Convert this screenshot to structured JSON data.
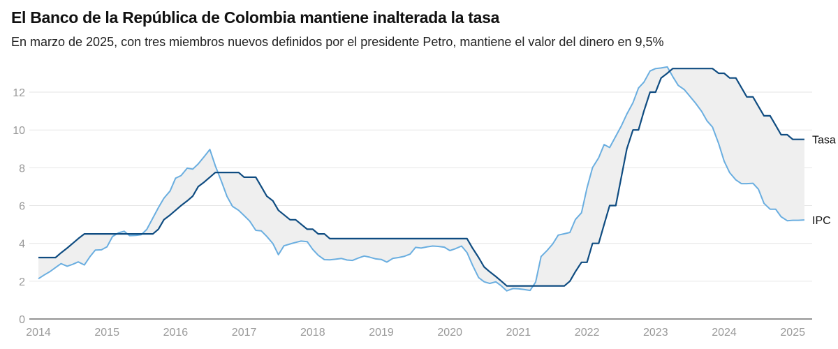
{
  "title": "El Banco de la República de Colombia mantiene inalterada la tasa",
  "subtitle": "En marzo de 2025, con tres miembros nuevos definidos por el presidente Petro, mantiene el valor del dinero en 9,5%",
  "chart_data": {
    "type": "line",
    "title": "El Banco de la República de Colombia mantiene inalterada la tasa",
    "xlim": [
      2014,
      2025.17
    ],
    "ylim": [
      0,
      13.5
    ],
    "x_ticks": [
      "2014",
      "2015",
      "2016",
      "2017",
      "2018",
      "2019",
      "2020",
      "2021",
      "2022",
      "2023",
      "2024",
      "2025"
    ],
    "y_ticks": [
      "0",
      "2",
      "4",
      "6",
      "8",
      "10",
      "12"
    ],
    "grid": true,
    "fill_between": true,
    "colors": {
      "Tasa": "#0f4c81",
      "IPC": "#6aaee0",
      "fill": "#efefef"
    },
    "series": [
      {
        "name": "Tasa",
        "points": [
          [
            2014,
            3.25
          ],
          [
            2014.25,
            3.25
          ],
          [
            2014.33,
            3.5
          ],
          [
            2014.42,
            3.75
          ],
          [
            2014.5,
            4.0
          ],
          [
            2014.58,
            4.25
          ],
          [
            2014.67,
            4.5
          ],
          [
            2015.67,
            4.5
          ],
          [
            2015.75,
            4.75
          ],
          [
            2015.83,
            5.25
          ],
          [
            2015.92,
            5.5
          ],
          [
            2016.0,
            5.75
          ],
          [
            2016.08,
            6.0
          ],
          [
            2016.17,
            6.25
          ],
          [
            2016.25,
            6.5
          ],
          [
            2016.33,
            7.0
          ],
          [
            2016.42,
            7.25
          ],
          [
            2016.5,
            7.5
          ],
          [
            2016.58,
            7.75
          ],
          [
            2016.92,
            7.75
          ],
          [
            2017.0,
            7.5
          ],
          [
            2017.17,
            7.5
          ],
          [
            2017.25,
            7.0
          ],
          [
            2017.33,
            6.5
          ],
          [
            2017.42,
            6.25
          ],
          [
            2017.5,
            5.75
          ],
          [
            2017.67,
            5.25
          ],
          [
            2017.75,
            5.25
          ],
          [
            2017.92,
            4.75
          ],
          [
            2018.0,
            4.75
          ],
          [
            2018.08,
            4.5
          ],
          [
            2018.17,
            4.5
          ],
          [
            2018.25,
            4.25
          ],
          [
            2020.25,
            4.25
          ],
          [
            2020.33,
            3.75
          ],
          [
            2020.42,
            3.25
          ],
          [
            2020.5,
            2.75
          ],
          [
            2020.58,
            2.5
          ],
          [
            2020.67,
            2.25
          ],
          [
            2020.75,
            2.0
          ],
          [
            2020.83,
            1.75
          ],
          [
            2021.67,
            1.75
          ],
          [
            2021.75,
            2.0
          ],
          [
            2021.83,
            2.5
          ],
          [
            2021.92,
            3.0
          ],
          [
            2022.0,
            3.0
          ],
          [
            2022.08,
            4.0
          ],
          [
            2022.17,
            4.0
          ],
          [
            2022.25,
            5.0
          ],
          [
            2022.33,
            6.0
          ],
          [
            2022.42,
            6.0
          ],
          [
            2022.5,
            7.5
          ],
          [
            2022.58,
            9.0
          ],
          [
            2022.67,
            10.0
          ],
          [
            2022.75,
            10.0
          ],
          [
            2022.83,
            11.0
          ],
          [
            2022.92,
            12.0
          ],
          [
            2023.0,
            12.0
          ],
          [
            2023.08,
            12.75
          ],
          [
            2023.17,
            13.0
          ],
          [
            2023.25,
            13.25
          ],
          [
            2023.83,
            13.25
          ],
          [
            2023.92,
            13.0
          ],
          [
            2024.0,
            13.0
          ],
          [
            2024.08,
            12.75
          ],
          [
            2024.17,
            12.75
          ],
          [
            2024.25,
            12.25
          ],
          [
            2024.33,
            11.75
          ],
          [
            2024.42,
            11.75
          ],
          [
            2024.5,
            11.25
          ],
          [
            2024.58,
            10.75
          ],
          [
            2024.67,
            10.75
          ],
          [
            2024.75,
            10.25
          ],
          [
            2024.83,
            9.75
          ],
          [
            2024.92,
            9.75
          ],
          [
            2025.0,
            9.5
          ],
          [
            2025.17,
            9.5
          ]
        ]
      },
      {
        "name": "IPC",
        "points": [
          [
            2014,
            2.13
          ],
          [
            2014.08,
            2.32
          ],
          [
            2014.17,
            2.51
          ],
          [
            2014.25,
            2.72
          ],
          [
            2014.33,
            2.93
          ],
          [
            2014.42,
            2.79
          ],
          [
            2014.5,
            2.89
          ],
          [
            2014.58,
            3.02
          ],
          [
            2014.67,
            2.86
          ],
          [
            2014.75,
            3.29
          ],
          [
            2014.83,
            3.65
          ],
          [
            2014.92,
            3.66
          ],
          [
            2015.0,
            3.82
          ],
          [
            2015.08,
            4.36
          ],
          [
            2015.17,
            4.56
          ],
          [
            2015.25,
            4.64
          ],
          [
            2015.33,
            4.41
          ],
          [
            2015.42,
            4.42
          ],
          [
            2015.5,
            4.46
          ],
          [
            2015.58,
            4.74
          ],
          [
            2015.67,
            5.35
          ],
          [
            2015.75,
            5.89
          ],
          [
            2015.83,
            6.39
          ],
          [
            2015.92,
            6.77
          ],
          [
            2016.0,
            7.45
          ],
          [
            2016.08,
            7.59
          ],
          [
            2016.17,
            7.98
          ],
          [
            2016.25,
            7.93
          ],
          [
            2016.33,
            8.2
          ],
          [
            2016.42,
            8.6
          ],
          [
            2016.5,
            8.97
          ],
          [
            2016.58,
            8.1
          ],
          [
            2016.67,
            7.27
          ],
          [
            2016.75,
            6.48
          ],
          [
            2016.83,
            5.96
          ],
          [
            2016.92,
            5.75
          ],
          [
            2017.0,
            5.47
          ],
          [
            2017.08,
            5.18
          ],
          [
            2017.17,
            4.69
          ],
          [
            2017.25,
            4.66
          ],
          [
            2017.33,
            4.37
          ],
          [
            2017.42,
            3.99
          ],
          [
            2017.5,
            3.4
          ],
          [
            2017.58,
            3.87
          ],
          [
            2017.67,
            3.97
          ],
          [
            2017.75,
            4.05
          ],
          [
            2017.83,
            4.12
          ],
          [
            2017.92,
            4.09
          ],
          [
            2018.0,
            3.68
          ],
          [
            2018.08,
            3.37
          ],
          [
            2018.17,
            3.14
          ],
          [
            2018.25,
            3.13
          ],
          [
            2018.33,
            3.16
          ],
          [
            2018.42,
            3.2
          ],
          [
            2018.5,
            3.12
          ],
          [
            2018.58,
            3.1
          ],
          [
            2018.67,
            3.23
          ],
          [
            2018.75,
            3.33
          ],
          [
            2018.83,
            3.27
          ],
          [
            2018.92,
            3.18
          ],
          [
            2019.0,
            3.15
          ],
          [
            2019.08,
            3.01
          ],
          [
            2019.17,
            3.21
          ],
          [
            2019.25,
            3.25
          ],
          [
            2019.33,
            3.31
          ],
          [
            2019.42,
            3.43
          ],
          [
            2019.5,
            3.79
          ],
          [
            2019.58,
            3.75
          ],
          [
            2019.67,
            3.82
          ],
          [
            2019.75,
            3.86
          ],
          [
            2019.83,
            3.84
          ],
          [
            2019.92,
            3.8
          ],
          [
            2020.0,
            3.62
          ],
          [
            2020.08,
            3.72
          ],
          [
            2020.17,
            3.86
          ],
          [
            2020.25,
            3.51
          ],
          [
            2020.33,
            2.85
          ],
          [
            2020.42,
            2.19
          ],
          [
            2020.5,
            1.97
          ],
          [
            2020.58,
            1.88
          ],
          [
            2020.67,
            1.97
          ],
          [
            2020.75,
            1.75
          ],
          [
            2020.83,
            1.49
          ],
          [
            2020.92,
            1.61
          ],
          [
            2021.0,
            1.6
          ],
          [
            2021.08,
            1.56
          ],
          [
            2021.17,
            1.51
          ],
          [
            2021.25,
            1.95
          ],
          [
            2021.33,
            3.3
          ],
          [
            2021.42,
            3.63
          ],
          [
            2021.5,
            3.97
          ],
          [
            2021.58,
            4.44
          ],
          [
            2021.67,
            4.51
          ],
          [
            2021.75,
            4.58
          ],
          [
            2021.83,
            5.26
          ],
          [
            2021.92,
            5.62
          ],
          [
            2022.0,
            6.94
          ],
          [
            2022.08,
            8.01
          ],
          [
            2022.17,
            8.53
          ],
          [
            2022.25,
            9.23
          ],
          [
            2022.33,
            9.07
          ],
          [
            2022.42,
            9.67
          ],
          [
            2022.5,
            10.21
          ],
          [
            2022.58,
            10.84
          ],
          [
            2022.67,
            11.44
          ],
          [
            2022.75,
            12.22
          ],
          [
            2022.83,
            12.53
          ],
          [
            2022.92,
            13.12
          ],
          [
            2023.0,
            13.25
          ],
          [
            2023.08,
            13.28
          ],
          [
            2023.17,
            13.34
          ],
          [
            2023.25,
            12.82
          ],
          [
            2023.33,
            12.36
          ],
          [
            2023.42,
            12.13
          ],
          [
            2023.5,
            11.78
          ],
          [
            2023.58,
            11.43
          ],
          [
            2023.67,
            10.99
          ],
          [
            2023.75,
            10.48
          ],
          [
            2023.83,
            10.15
          ],
          [
            2023.92,
            9.28
          ],
          [
            2024.0,
            8.35
          ],
          [
            2024.08,
            7.74
          ],
          [
            2024.17,
            7.36
          ],
          [
            2024.25,
            7.16
          ],
          [
            2024.33,
            7.16
          ],
          [
            2024.42,
            7.18
          ],
          [
            2024.5,
            6.86
          ],
          [
            2024.58,
            6.12
          ],
          [
            2024.67,
            5.81
          ],
          [
            2024.75,
            5.81
          ],
          [
            2024.83,
            5.41
          ],
          [
            2024.92,
            5.2
          ],
          [
            2025.0,
            5.22
          ],
          [
            2025.08,
            5.22
          ],
          [
            2025.17,
            5.24
          ]
        ]
      }
    ]
  }
}
